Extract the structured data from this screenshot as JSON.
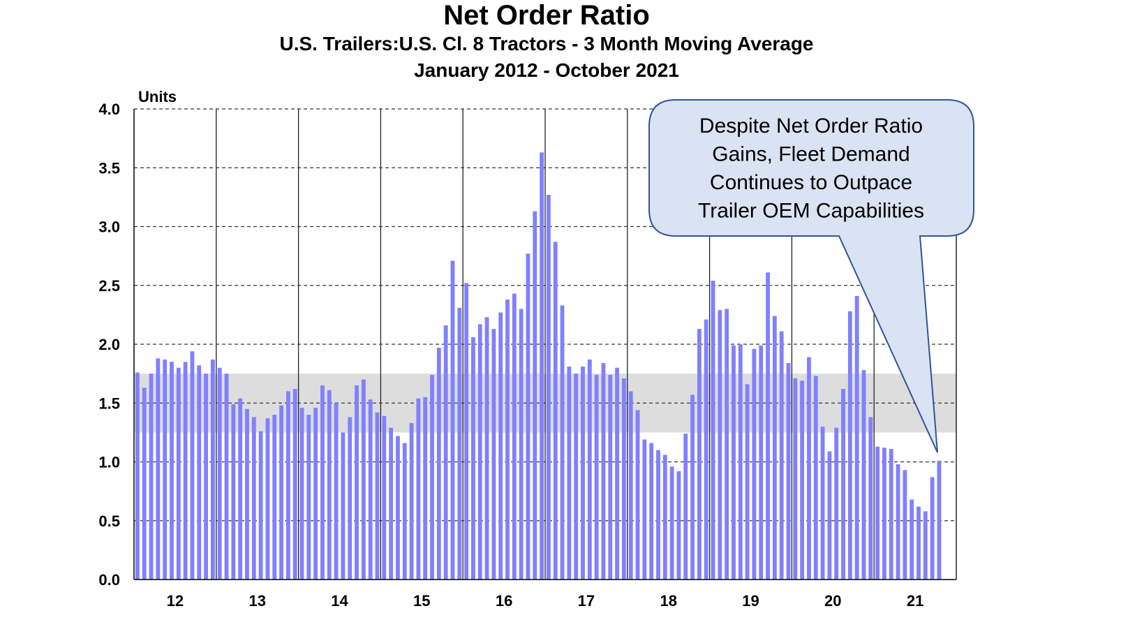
{
  "chart_data": {
    "type": "bar",
    "title": "Net Order Ratio",
    "subtitle": [
      "U.S. Trailers:U.S. Cl. 8 Tractors - 3 Month Moving Average",
      "January 2012 - October 2021"
    ],
    "ylabel": "Units",
    "xlabel": "",
    "ylim": [
      0,
      4.0
    ],
    "yticks": [
      "0.0",
      "0.5",
      "1.0",
      "1.5",
      "2.0",
      "2.5",
      "3.0",
      "3.5",
      "4.0"
    ],
    "xtick_labels": [
      "12",
      "13",
      "14",
      "15",
      "16",
      "17",
      "18",
      "19",
      "20",
      "21"
    ],
    "grid": "horizontal dashed at 0.5 intervals; vertical solid at year boundaries",
    "shaded_band": [
      1.25,
      1.75
    ],
    "bar_color": "#8080ff",
    "band_color": "#dddddd",
    "values": [
      1.76,
      1.63,
      1.75,
      1.88,
      1.87,
      1.85,
      1.8,
      1.85,
      1.94,
      1.82,
      1.75,
      1.87,
      1.8,
      1.75,
      1.49,
      1.54,
      1.45,
      1.38,
      1.26,
      1.37,
      1.4,
      1.48,
      1.6,
      1.62,
      1.46,
      1.4,
      1.46,
      1.65,
      1.61,
      1.5,
      1.25,
      1.38,
      1.65,
      1.7,
      1.53,
      1.42,
      1.39,
      1.29,
      1.22,
      1.16,
      1.33,
      1.54,
      1.55,
      1.74,
      1.97,
      2.16,
      2.71,
      2.31,
      2.52,
      2.06,
      2.17,
      2.23,
      2.13,
      2.27,
      2.38,
      2.43,
      2.3,
      2.77,
      3.13,
      3.63,
      3.27,
      2.87,
      2.33,
      1.81,
      1.75,
      1.81,
      1.87,
      1.74,
      1.84,
      1.74,
      1.8,
      1.71,
      1.6,
      1.44,
      1.19,
      1.16,
      1.1,
      1.06,
      0.96,
      0.92,
      1.24,
      1.57,
      2.13,
      2.21,
      2.54,
      2.29,
      2.3,
      1.99,
      2.0,
      1.66,
      1.96,
      1.99,
      2.61,
      2.24,
      2.11,
      1.84,
      1.71,
      1.69,
      1.89,
      1.73,
      1.3,
      1.09,
      1.29,
      1.62,
      2.28,
      2.41,
      1.78,
      1.38,
      1.13,
      1.12,
      1.11,
      0.98,
      0.93,
      0.68,
      0.62,
      0.58,
      0.87,
      1.01
    ],
    "annotation": {
      "lines": [
        "Despite Net Order Ratio",
        "Gains, Fleet Demand",
        "Continues to Outpace",
        "Trailer OEM Capabilities"
      ],
      "fill": "#dae3f3",
      "stroke": "#2f5597"
    }
  }
}
